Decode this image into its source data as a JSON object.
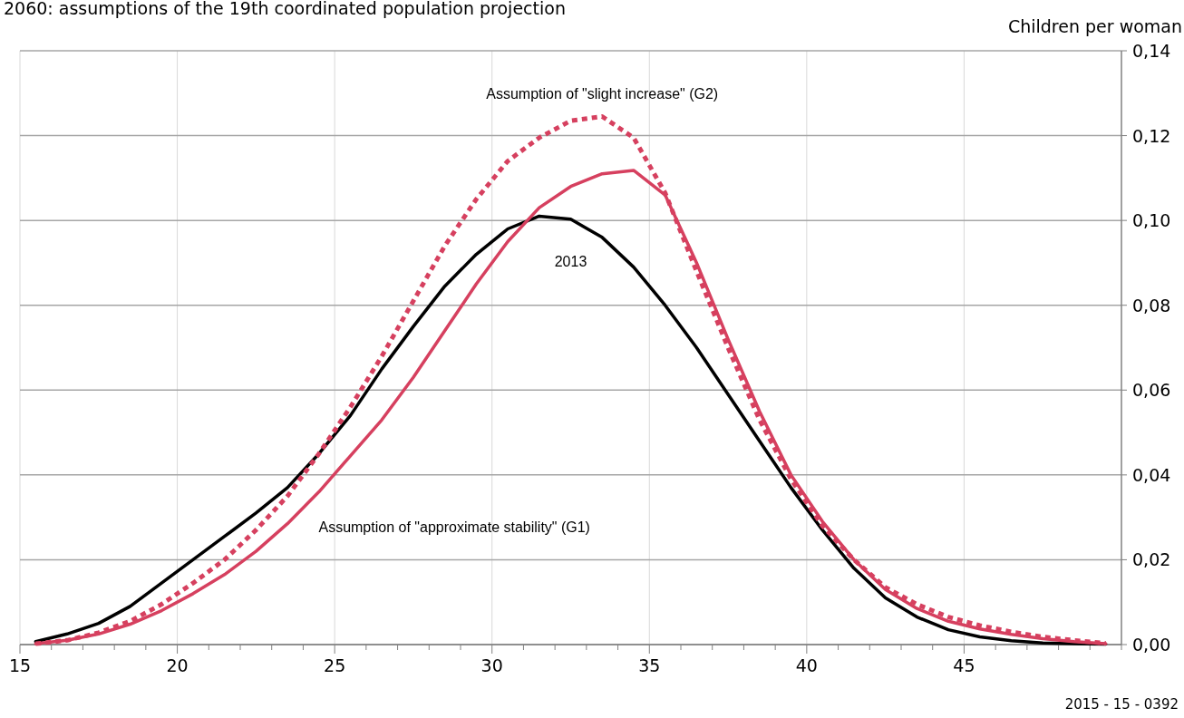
{
  "chart_data": {
    "type": "line",
    "title": "2060: assumptions of the 19th coordinated population projection",
    "ylabel": "Children per woman",
    "annotations": [
      "2015 - 15 - 0392"
    ],
    "x": [
      15.5,
      16.5,
      17.5,
      18.5,
      19.5,
      20.5,
      21.5,
      22.5,
      23.5,
      24.5,
      25.5,
      26.5,
      27.5,
      28.5,
      29.5,
      30.5,
      31.5,
      32.5,
      33.5,
      34.5,
      35.5,
      36.5,
      37.5,
      38.5,
      39.5,
      40.5,
      41.5,
      42.5,
      43.5,
      44.5,
      45.5,
      46.5,
      47.5,
      48.5,
      49.5
    ],
    "series": [
      {
        "name": "2013",
        "color": "#000000",
        "line_style": "solid",
        "values": [
          0.0007,
          0.0025,
          0.005,
          0.009,
          0.0145,
          0.02,
          0.0255,
          0.031,
          0.037,
          0.045,
          0.054,
          0.065,
          0.075,
          0.0845,
          0.092,
          0.098,
          0.101,
          0.1003,
          0.096,
          0.089,
          0.08,
          0.07,
          0.059,
          0.048,
          0.037,
          0.027,
          0.018,
          0.011,
          0.0065,
          0.0035,
          0.0018,
          0.0009,
          0.0004,
          0.0002,
          0.0001
        ]
      },
      {
        "name": "Assumption of \"approximate stability\" (G1)",
        "color": "#d6405f",
        "line_style": "solid",
        "values": [
          0.0002,
          0.001,
          0.0025,
          0.0048,
          0.008,
          0.012,
          0.0165,
          0.022,
          0.0285,
          0.036,
          0.0445,
          0.053,
          0.063,
          0.074,
          0.085,
          0.095,
          0.103,
          0.108,
          0.111,
          0.1118,
          0.106,
          0.09,
          0.072,
          0.055,
          0.04,
          0.029,
          0.02,
          0.013,
          0.0085,
          0.0055,
          0.0037,
          0.0024,
          0.0014,
          0.0007,
          0.0002
        ]
      },
      {
        "name": "Assumption of \"slight increase\" (G2)",
        "color": "#d6405f",
        "line_style": "dotted",
        "values": [
          0.0002,
          0.001,
          0.0028,
          0.0055,
          0.0095,
          0.0145,
          0.02,
          0.027,
          0.035,
          0.045,
          0.056,
          0.068,
          0.081,
          0.094,
          0.105,
          0.114,
          0.1195,
          0.1235,
          0.1245,
          0.1195,
          0.1065,
          0.088,
          0.07,
          0.053,
          0.039,
          0.028,
          0.02,
          0.0135,
          0.0095,
          0.0065,
          0.0045,
          0.003,
          0.0018,
          0.001,
          0.0003
        ]
      }
    ],
    "xlim": [
      15,
      50
    ],
    "xticks": [
      15,
      {
        "value": 16,
        "label": null
      },
      {
        "value": 17,
        "label": null
      },
      {
        "value": 18,
        "label": null
      },
      {
        "value": 19,
        "label": null
      },
      20,
      {
        "value": 21,
        "label": null
      },
      {
        "value": 22,
        "label": null
      },
      {
        "value": 23,
        "label": null
      },
      {
        "value": 24,
        "label": null
      },
      25,
      {
        "value": 26,
        "label": null
      },
      {
        "value": 27,
        "label": null
      },
      {
        "value": 28,
        "label": null
      },
      {
        "value": 29,
        "label": null
      },
      30,
      {
        "value": 31,
        "label": null
      },
      {
        "value": 32,
        "label": null
      },
      {
        "value": 33,
        "label": null
      },
      {
        "value": 34,
        "label": null
      },
      35,
      {
        "value": 36,
        "label": null
      },
      {
        "value": 37,
        "label": null
      },
      {
        "value": 38,
        "label": null
      },
      {
        "value": 39,
        "label": null
      },
      40,
      {
        "value": 41,
        "label": null
      },
      {
        "value": 42,
        "label": null
      },
      {
        "value": 43,
        "label": null
      },
      {
        "value": 44,
        "label": null
      },
      45,
      {
        "value": 46,
        "label": null
      },
      {
        "value": 47,
        "label": null
      },
      {
        "value": 48,
        "label": null
      },
      {
        "value": 49,
        "label": null
      },
      {
        "value": 50,
        "label": null
      }
    ],
    "ylim": [
      0,
      0.14
    ],
    "yticks": [
      {
        "value": 0,
        "label": "0,00"
      },
      {
        "value": 0.02,
        "label": "0,02"
      },
      {
        "value": 0.04,
        "label": "0,04"
      },
      {
        "value": 0.06,
        "label": "0,06"
      },
      {
        "value": 0.08,
        "label": "0,08"
      },
      {
        "value": 0.1,
        "label": "0,10"
      },
      {
        "value": 0.12,
        "label": "0,12"
      },
      {
        "value": 0.14,
        "label": "0,14"
      }
    ],
    "grid": true
  }
}
